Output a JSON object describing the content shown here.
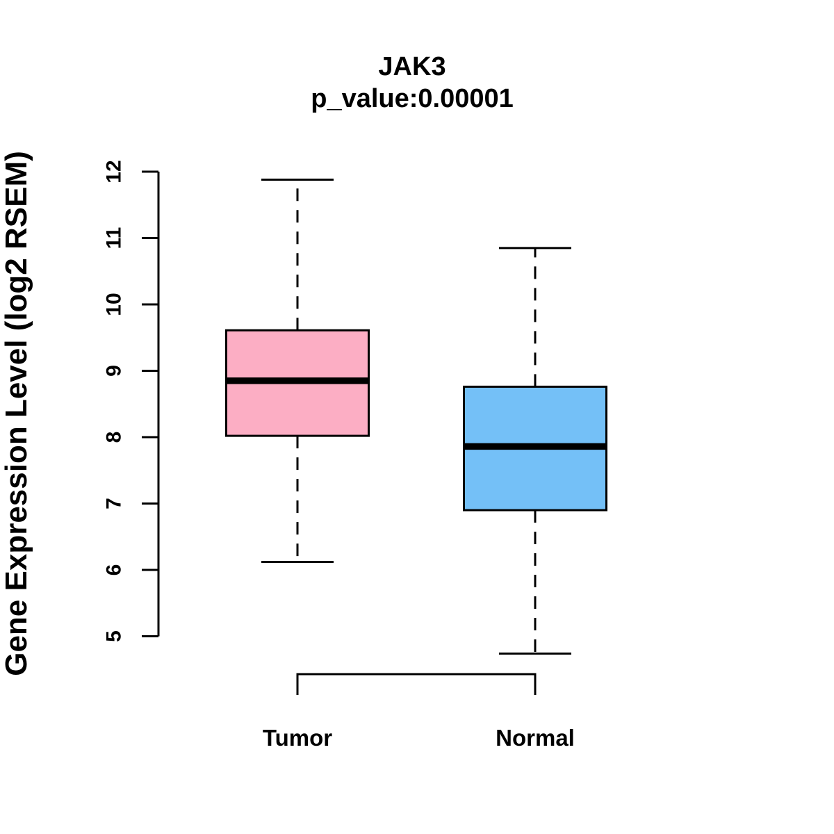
{
  "title": "JAK3",
  "subtitle": "p_value:0.00001",
  "chart_data": {
    "type": "boxplot",
    "title": "JAK3",
    "subtitle": "p_value:0.00001",
    "ylabel": "Gene Expression Level (log2 RSEM)",
    "xlabel": "",
    "categories": [
      "Tumor",
      "Normal"
    ],
    "yticks": [
      5,
      6,
      7,
      8,
      9,
      10,
      11,
      12
    ],
    "ylim": [
      4.2,
      12.2
    ],
    "grid": false,
    "legend": "none",
    "whisker_style": "dashed",
    "line_color": "#000000",
    "background_color": "#ffffff",
    "series": [
      {
        "name": "Tumor",
        "lower_whisker": 6.12,
        "q1": 8.02,
        "median": 8.85,
        "q3": 9.61,
        "upper_whisker": 11.88,
        "fill_color": "#FCAEC4"
      },
      {
        "name": "Normal",
        "lower_whisker": 4.74,
        "q1": 6.9,
        "median": 7.86,
        "q3": 8.76,
        "upper_whisker": 10.85,
        "fill_color": "#74C0F7"
      }
    ]
  }
}
